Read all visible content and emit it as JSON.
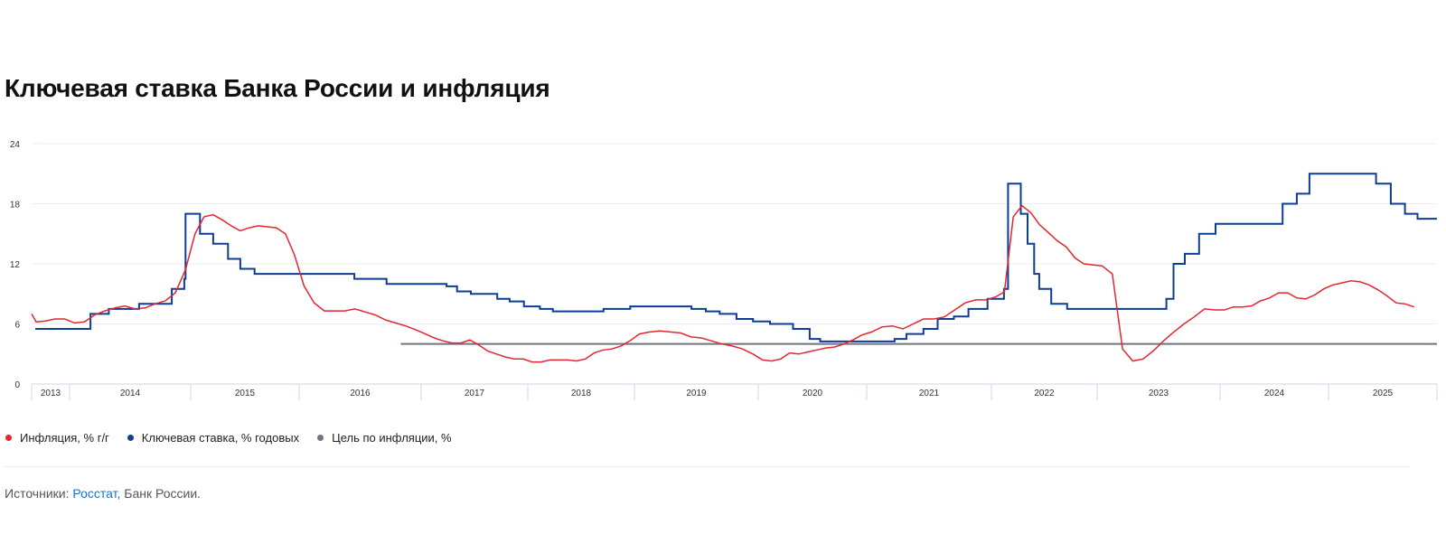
{
  "title": "Ключевая ставка Банка России и инфляция",
  "legend": [
    {
      "label": "Инфляция, % г/г",
      "color": "#e3262f"
    },
    {
      "label": "Ключевая ставка, % годовых",
      "color": "#0d3d94"
    },
    {
      "label": "Цель по инфляции, %",
      "color": "#6e7480"
    }
  ],
  "source": {
    "prefix": "Источники: ",
    "link": "Росстат",
    "suffix": ", Банк России."
  },
  "chart_data": {
    "type": "line",
    "title": "Ключевая ставка Банка России и инфляция",
    "ylim": [
      0,
      24
    ],
    "y_ticks": [
      "0",
      "6",
      "12",
      "18",
      "24"
    ],
    "x_ticks": [
      "2013",
      "2014",
      "2015",
      "2016",
      "2017",
      "2018",
      "2019",
      "2020",
      "2021",
      "2022",
      "2023",
      "2024",
      "2025"
    ],
    "grid": true,
    "legend_position": "bottom-left",
    "series": [
      {
        "name": "Инфляция, % г/г",
        "type": "line",
        "monthly": [
          {
            "year": 2013,
            "start_month": 8,
            "values": [
              7.0,
              6.2,
              6.3,
              6.5,
              6.5
            ]
          },
          {
            "year": 2014,
            "start_month": 1,
            "values": [
              6.1,
              6.2,
              6.9,
              7.3,
              7.6,
              7.8,
              7.5,
              7.6,
              8.0,
              8.3,
              9.1,
              11.4
            ]
          },
          {
            "year": 2015,
            "start_month": 1,
            "values": [
              15.0,
              16.7,
              16.9,
              16.4,
              15.8,
              15.3,
              15.6,
              15.8,
              15.7,
              15.6,
              15.0,
              12.9
            ]
          },
          {
            "year": 2016,
            "start_month": 1,
            "values": [
              9.8,
              8.1,
              7.3,
              7.3,
              7.3,
              7.5,
              7.2,
              6.9,
              6.4,
              6.1,
              5.8,
              5.4
            ]
          },
          {
            "year": 2017,
            "start_month": 1,
            "values": [
              5.0,
              4.6,
              4.3,
              4.1,
              4.1,
              4.4,
              3.9,
              3.3,
              3.0,
              2.7,
              2.5,
              2.5
            ]
          },
          {
            "year": 2018,
            "start_month": 1,
            "values": [
              2.2,
              2.2,
              2.4,
              2.4,
              2.4,
              2.3,
              2.5,
              3.1,
              3.4,
              3.5,
              3.8,
              4.3
            ]
          },
          {
            "year": 2019,
            "start_month": 1,
            "values": [
              5.0,
              5.2,
              5.3,
              5.2,
              5.1,
              4.7,
              4.6,
              4.3,
              4.0,
              3.8,
              3.5,
              3.0
            ]
          },
          {
            "year": 2020,
            "start_month": 1,
            "values": [
              2.4,
              2.3,
              2.5,
              3.1,
              3.0,
              3.2,
              3.4,
              3.6,
              3.7,
              4.0,
              4.4,
              4.9
            ]
          },
          {
            "year": 2021,
            "start_month": 1,
            "values": [
              5.2,
              5.7,
              5.8,
              5.5,
              6.0,
              6.5,
              6.5,
              6.7,
              7.4,
              8.1,
              8.4,
              8.4
            ]
          },
          {
            "year": 2022,
            "start_month": 1,
            "values": [
              8.7,
              9.2,
              16.7,
              17.8,
              17.1,
              15.9,
              15.1,
              14.3,
              13.7,
              12.6,
              12.0,
              11.9
            ]
          },
          {
            "year": 2023,
            "start_month": 1,
            "values": [
              11.8,
              11.0,
              3.5,
              2.3,
              2.5,
              3.3,
              4.3,
              5.2,
              6.0,
              6.7,
              7.5,
              7.4
            ]
          },
          {
            "year": 2024,
            "start_month": 1,
            "values": [
              7.4,
              7.7,
              7.7,
              7.8,
              8.3,
              8.6,
              9.1,
              9.1,
              8.6,
              8.5,
              8.9,
              9.5
            ]
          },
          {
            "year": 2025,
            "start_month": 1,
            "values": [
              9.9,
              10.1,
              10.3,
              10.2,
              9.9,
              9.4,
              8.8,
              8.1,
              8.0,
              7.7
            ]
          }
        ]
      },
      {
        "name": "Ключевая ставка, % годовых",
        "type": "step",
        "steps": [
          [
            "2013-09-13",
            5.5
          ],
          [
            "2014-03-03",
            7.0
          ],
          [
            "2014-04-28",
            7.5
          ],
          [
            "2014-07-28",
            8.0
          ],
          [
            "2014-11-05",
            9.5
          ],
          [
            "2014-12-12",
            10.5
          ],
          [
            "2014-12-16",
            17.0
          ],
          [
            "2015-02-02",
            15.0
          ],
          [
            "2015-03-16",
            14.0
          ],
          [
            "2015-05-05",
            12.5
          ],
          [
            "2015-06-16",
            11.5
          ],
          [
            "2015-08-03",
            11.0
          ],
          [
            "2016-06-14",
            10.5
          ],
          [
            "2016-09-19",
            10.0
          ],
          [
            "2017-03-27",
            9.75
          ],
          [
            "2017-05-02",
            9.25
          ],
          [
            "2017-06-19",
            9.0
          ],
          [
            "2017-09-18",
            8.5
          ],
          [
            "2017-10-30",
            8.25
          ],
          [
            "2017-12-18",
            7.75
          ],
          [
            "2018-02-12",
            7.5
          ],
          [
            "2018-03-26",
            7.25
          ],
          [
            "2018-09-17",
            7.5
          ],
          [
            "2018-12-17",
            7.75
          ],
          [
            "2019-06-17",
            7.5
          ],
          [
            "2019-07-29",
            7.25
          ],
          [
            "2019-09-09",
            7.0
          ],
          [
            "2019-10-28",
            6.5
          ],
          [
            "2019-12-16",
            6.25
          ],
          [
            "2020-02-10",
            6.0
          ],
          [
            "2020-04-27",
            5.5
          ],
          [
            "2020-06-22",
            4.5
          ],
          [
            "2020-07-27",
            4.25
          ],
          [
            "2021-03-22",
            4.5
          ],
          [
            "2021-04-26",
            5.0
          ],
          [
            "2021-06-15",
            5.5
          ],
          [
            "2021-07-26",
            6.5
          ],
          [
            "2021-09-13",
            6.75
          ],
          [
            "2021-10-25",
            7.5
          ],
          [
            "2021-12-20",
            8.5
          ],
          [
            "2022-02-14",
            9.5
          ],
          [
            "2022-02-28",
            20.0
          ],
          [
            "2022-04-11",
            17.0
          ],
          [
            "2022-05-04",
            14.0
          ],
          [
            "2022-05-27",
            11.0
          ],
          [
            "2022-06-14",
            9.5
          ],
          [
            "2022-07-25",
            8.0
          ],
          [
            "2022-09-19",
            7.5
          ],
          [
            "2023-07-24",
            8.5
          ],
          [
            "2023-08-15",
            12.0
          ],
          [
            "2023-09-18",
            13.0
          ],
          [
            "2023-10-30",
            15.0
          ],
          [
            "2023-12-18",
            16.0
          ],
          [
            "2024-07-29",
            18.0
          ],
          [
            "2024-09-16",
            19.0
          ],
          [
            "2024-10-28",
            21.0
          ],
          [
            "2025-06-09",
            20.0
          ],
          [
            "2025-07-28",
            18.0
          ],
          [
            "2025-09-15",
            17.0
          ],
          [
            "2025-10-27",
            16.5
          ]
        ]
      },
      {
        "name": "Цель по инфляции, %",
        "type": "constant",
        "from": "2016-11-01",
        "value": 4.0
      }
    ]
  }
}
